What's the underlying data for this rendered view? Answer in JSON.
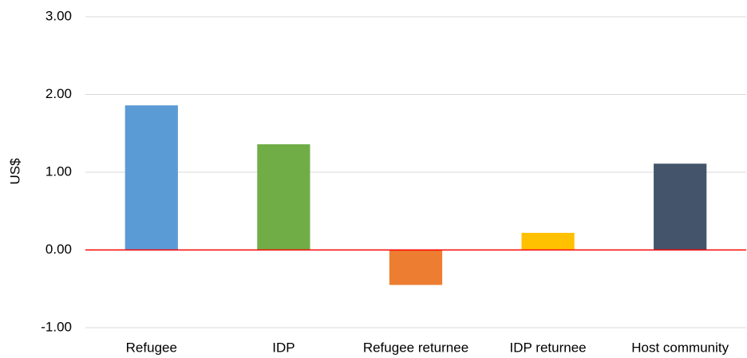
{
  "chart_data": {
    "type": "bar",
    "y_label": "US$",
    "categories": [
      "Refugee",
      "IDP",
      "Refugee returnee",
      "IDP returnee",
      "Host community"
    ],
    "values": [
      1.86,
      1.36,
      -0.45,
      0.22,
      1.11
    ],
    "colors": [
      "#5b9bd5",
      "#70ad47",
      "#ed7d31",
      "#ffc000",
      "#44546a"
    ],
    "ylim": [
      -1,
      3
    ],
    "yticks": [
      {
        "value": -1,
        "label": "-1.00"
      },
      {
        "value": 0,
        "label": "0.00"
      },
      {
        "value": 1,
        "label": "1.00"
      },
      {
        "value": 2,
        "label": "2.00"
      },
      {
        "value": 3,
        "label": "3.00"
      }
    ],
    "grid": true,
    "zero_line_color": "#ff0000"
  }
}
